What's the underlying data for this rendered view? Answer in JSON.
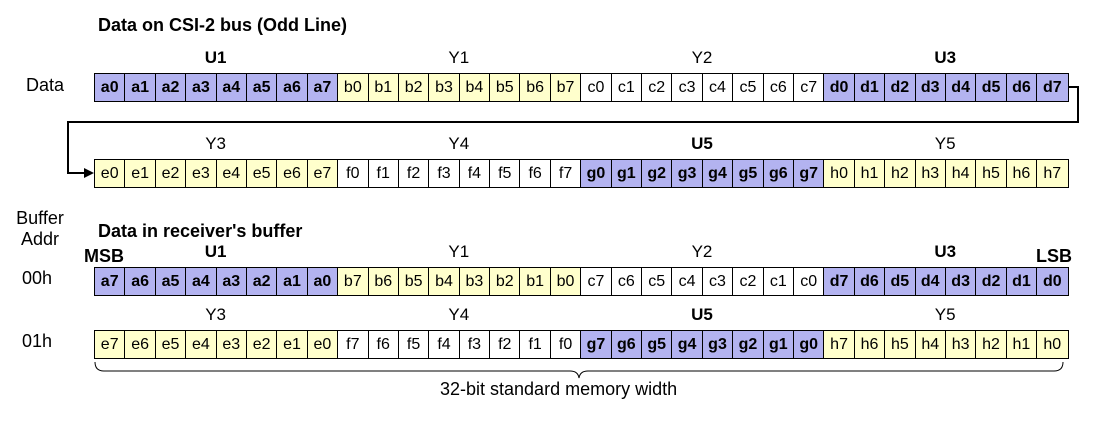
{
  "top_title": "Data on CSI-2 bus  (Odd Line)",
  "bottom_title": "Data in receiver's buffer",
  "data_label": "Data",
  "buffer_addr_label": [
    "Buffer",
    "Addr"
  ],
  "msb_label": "MSB",
  "lsb_label": "LSB",
  "width_label": "32-bit standard memory width",
  "colors": {
    "U": "#b3b3f0",
    "Y": "#ffffcc",
    "W": "#ffffff"
  },
  "rows": [
    {
      "id": "bus-row-1",
      "side_label": "",
      "groups": [
        {
          "label": "U1",
          "type": "U",
          "cells": [
            "a0",
            "a1",
            "a2",
            "a3",
            "a4",
            "a5",
            "a6",
            "a7"
          ]
        },
        {
          "label": "Y1",
          "type": "Y",
          "cells": [
            "b0",
            "b1",
            "b2",
            "b3",
            "b4",
            "b5",
            "b6",
            "b7"
          ]
        },
        {
          "label": "Y2",
          "type": "W",
          "cells": [
            "c0",
            "c1",
            "c2",
            "c3",
            "c4",
            "c5",
            "c6",
            "c7"
          ]
        },
        {
          "label": "U3",
          "type": "U",
          "cells": [
            "d0",
            "d1",
            "d2",
            "d3",
            "d4",
            "d5",
            "d6",
            "d7"
          ]
        }
      ]
    },
    {
      "id": "bus-row-2",
      "side_label": "",
      "groups": [
        {
          "label": "Y3",
          "type": "Y",
          "cells": [
            "e0",
            "e1",
            "e2",
            "e3",
            "e4",
            "e5",
            "e6",
            "e7"
          ]
        },
        {
          "label": "Y4",
          "type": "W",
          "cells": [
            "f0",
            "f1",
            "f2",
            "f3",
            "f4",
            "f5",
            "f6",
            "f7"
          ]
        },
        {
          "label": "U5",
          "type": "U",
          "cells": [
            "g0",
            "g1",
            "g2",
            "g3",
            "g4",
            "g5",
            "g6",
            "g7"
          ]
        },
        {
          "label": "Y5",
          "type": "Y",
          "cells": [
            "h0",
            "h1",
            "h2",
            "h3",
            "h4",
            "h5",
            "h6",
            "h7"
          ]
        }
      ]
    },
    {
      "id": "buffer-row-00h",
      "side_label": "00h",
      "groups": [
        {
          "label": "U1",
          "type": "U",
          "cells": [
            "a7",
            "a6",
            "a5",
            "a4",
            "a3",
            "a2",
            "a1",
            "a0"
          ]
        },
        {
          "label": "Y1",
          "type": "Y",
          "cells": [
            "b7",
            "b6",
            "b5",
            "b4",
            "b3",
            "b2",
            "b1",
            "b0"
          ]
        },
        {
          "label": "Y2",
          "type": "W",
          "cells": [
            "c7",
            "c6",
            "c5",
            "c4",
            "c3",
            "c2",
            "c1",
            "c0"
          ]
        },
        {
          "label": "U3",
          "type": "U",
          "cells": [
            "d7",
            "d6",
            "d5",
            "d4",
            "d3",
            "d2",
            "d1",
            "d0"
          ]
        }
      ]
    },
    {
      "id": "buffer-row-01h",
      "side_label": "01h",
      "groups": [
        {
          "label": "Y3",
          "type": "Y",
          "cells": [
            "e7",
            "e6",
            "e5",
            "e4",
            "e3",
            "e2",
            "e1",
            "e0"
          ]
        },
        {
          "label": "Y4",
          "type": "W",
          "cells": [
            "f7",
            "f6",
            "f5",
            "f4",
            "f3",
            "f2",
            "f1",
            "f0"
          ]
        },
        {
          "label": "U5",
          "type": "U",
          "cells": [
            "g7",
            "g6",
            "g5",
            "g4",
            "g3",
            "g2",
            "g1",
            "g0"
          ]
        },
        {
          "label": "Y5",
          "type": "Y",
          "cells": [
            "h7",
            "h6",
            "h5",
            "h4",
            "h3",
            "h2",
            "h1",
            "h0"
          ]
        }
      ]
    }
  ]
}
